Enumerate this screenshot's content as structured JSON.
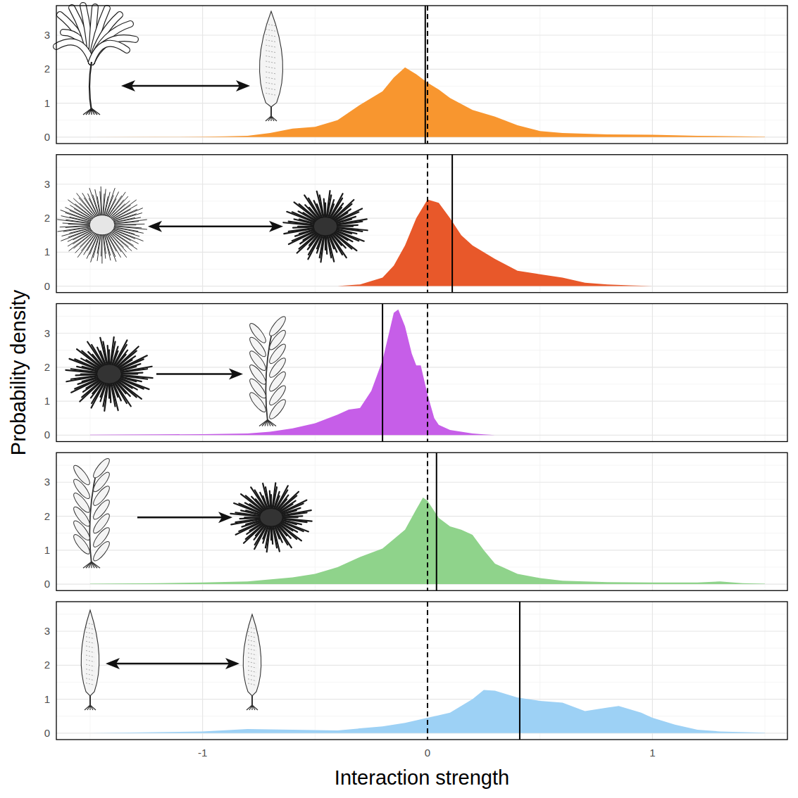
{
  "chart_data": {
    "type": "area",
    "x_label": "Interaction strength",
    "y_label": "Probability density",
    "xlim": [
      -1.65,
      1.6
    ],
    "xticks": [
      -1,
      0,
      1
    ],
    "grid": true,
    "panels": [
      {
        "color": "#f8962f",
        "ylim": [
          -0.19,
          3.87
        ],
        "yticks": [
          0,
          1,
          2,
          3
        ],
        "reference_line": 0,
        "mean": -0.01,
        "x": [
          -1.5,
          -1.2,
          -1.0,
          -0.9,
          -0.8,
          -0.7,
          -0.6,
          -0.5,
          -0.4,
          -0.3,
          -0.2,
          -0.15,
          -0.1,
          -0.05,
          0,
          0.05,
          0.1,
          0.2,
          0.3,
          0.4,
          0.5,
          0.6,
          0.7,
          0.8,
          1.0,
          1.2,
          1.4,
          1.5
        ],
        "values": [
          0,
          0.005,
          0.01,
          0.02,
          0.04,
          0.12,
          0.25,
          0.3,
          0.5,
          0.95,
          1.35,
          1.75,
          2.05,
          1.85,
          1.6,
          1.4,
          1.15,
          0.8,
          0.6,
          0.35,
          0.18,
          0.12,
          0.1,
          0.08,
          0.07,
          0.04,
          0.02,
          0.01
        ]
      },
      {
        "color": "#e8582a",
        "ylim": [
          -0.19,
          3.87
        ],
        "yticks": [
          0,
          1,
          2,
          3
        ],
        "reference_line": 0,
        "mean": 0.11,
        "x": [
          -0.4,
          -0.3,
          -0.2,
          -0.15,
          -0.1,
          -0.05,
          0,
          0.05,
          0.1,
          0.15,
          0.2,
          0.3,
          0.4,
          0.5,
          0.6,
          0.7,
          0.8,
          0.9,
          1.0
        ],
        "values": [
          0,
          0.05,
          0.25,
          0.6,
          1.2,
          2.0,
          2.55,
          2.45,
          2.0,
          1.5,
          1.2,
          0.8,
          0.45,
          0.35,
          0.25,
          0.1,
          0.05,
          0.02,
          0
        ]
      },
      {
        "color": "#c65ee8",
        "ylim": [
          -0.19,
          3.87
        ],
        "yticks": [
          0,
          1,
          2,
          3
        ],
        "reference_line": 0,
        "mean": -0.2,
        "x": [
          -1.5,
          -1.2,
          -1.0,
          -0.8,
          -0.7,
          -0.6,
          -0.5,
          -0.4,
          -0.35,
          -0.3,
          -0.25,
          -0.2,
          -0.15,
          -0.13,
          -0.1,
          -0.07,
          -0.05,
          -0.03,
          0,
          0.03,
          0.05,
          0.1,
          0.15,
          0.2,
          0.25,
          0.3
        ],
        "values": [
          0.01,
          0.02,
          0.03,
          0.05,
          0.1,
          0.2,
          0.35,
          0.6,
          0.75,
          0.8,
          1.3,
          2.2,
          3.6,
          3.7,
          3.2,
          2.4,
          2.05,
          2.05,
          1.2,
          0.5,
          0.3,
          0.15,
          0.1,
          0.05,
          0.02,
          0
        ]
      },
      {
        "color": "#8fd38b",
        "ylim": [
          -0.19,
          3.87
        ],
        "yticks": [
          0,
          1,
          2,
          3
        ],
        "reference_line": 0,
        "mean": 0.04,
        "x": [
          -1.5,
          -1.2,
          -1.0,
          -0.8,
          -0.6,
          -0.5,
          -0.4,
          -0.3,
          -0.2,
          -0.1,
          -0.05,
          -0.02,
          0,
          0.05,
          0.1,
          0.15,
          0.2,
          0.25,
          0.3,
          0.4,
          0.5,
          0.6,
          0.8,
          1.0,
          1.2,
          1.3,
          1.4,
          1.5
        ],
        "values": [
          0.01,
          0.03,
          0.05,
          0.08,
          0.2,
          0.3,
          0.5,
          0.8,
          1.05,
          1.6,
          2.2,
          2.55,
          2.45,
          1.95,
          1.7,
          1.6,
          1.45,
          1.0,
          0.6,
          0.3,
          0.18,
          0.1,
          0.06,
          0.05,
          0.05,
          0.08,
          0.03,
          0.01
        ]
      },
      {
        "color": "#9dd1f5",
        "ylim": [
          -0.19,
          3.87
        ],
        "yticks": [
          0,
          1,
          2,
          3
        ],
        "reference_line": 0,
        "mean": 0.41,
        "x": [
          -1.5,
          -1.0,
          -0.8,
          -0.6,
          -0.4,
          -0.2,
          -0.1,
          0,
          0.1,
          0.2,
          0.25,
          0.3,
          0.4,
          0.5,
          0.6,
          0.7,
          0.8,
          0.85,
          0.95,
          1.0,
          1.1,
          1.2,
          1.3,
          1.5
        ],
        "values": [
          0,
          0.05,
          0.12,
          0.1,
          0.08,
          0.2,
          0.3,
          0.45,
          0.6,
          1.0,
          1.27,
          1.25,
          1.05,
          0.95,
          0.9,
          0.65,
          0.75,
          0.8,
          0.6,
          0.45,
          0.25,
          0.1,
          0.05,
          0.01
        ]
      }
    ]
  }
}
